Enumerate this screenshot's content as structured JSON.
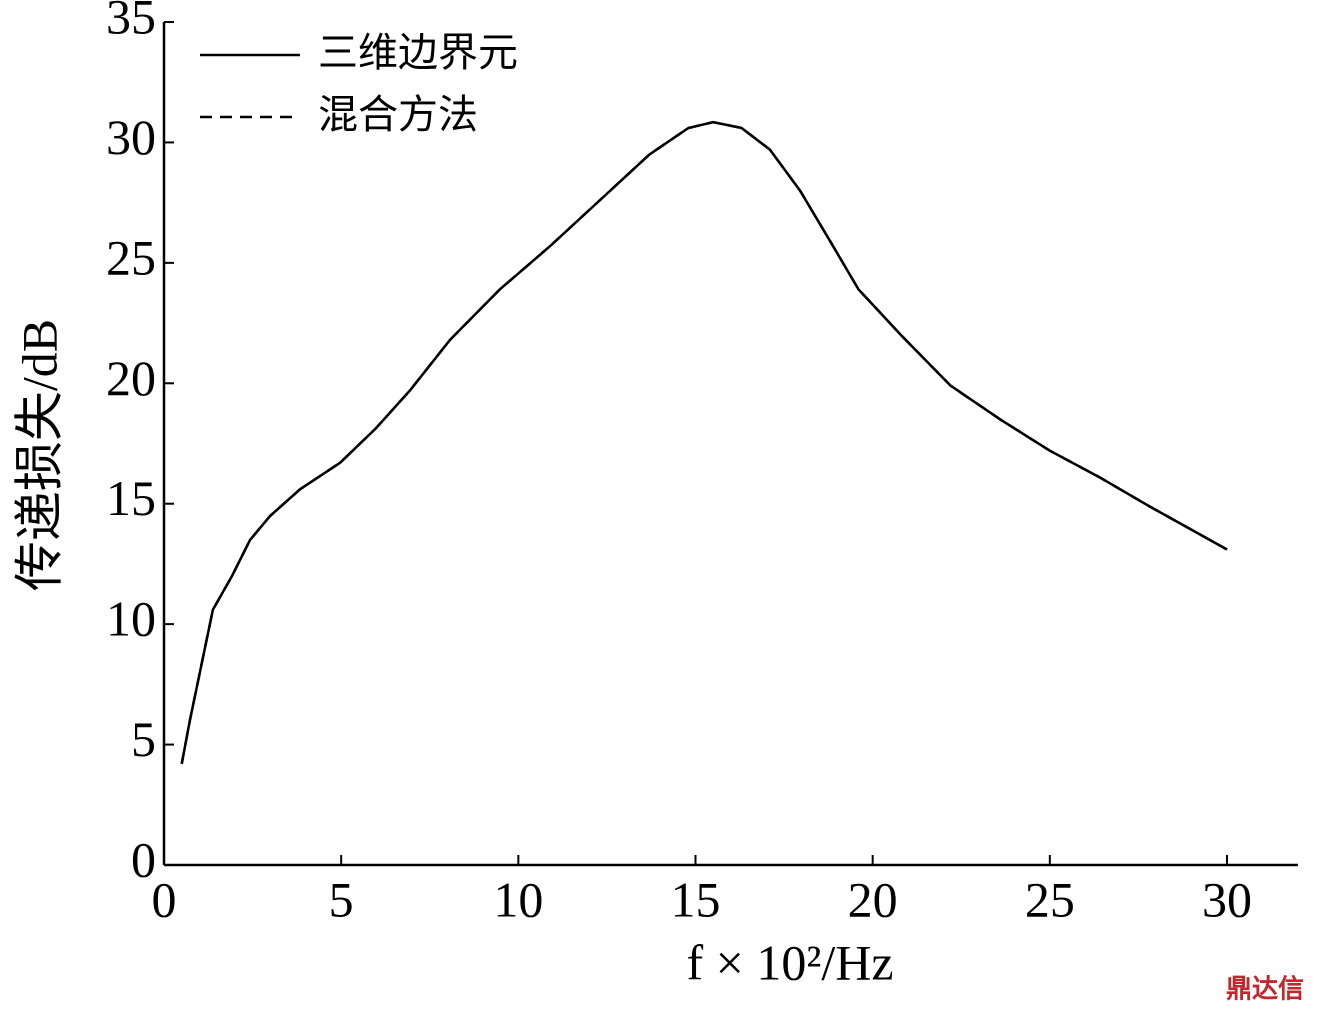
{
  "chart_data": {
    "type": "line",
    "xlabel": "f × 10²/Hz",
    "ylabel": "传递损失/dB",
    "watermark": "鼎达信",
    "xlim": [
      0,
      32
    ],
    "ylim": [
      0,
      35
    ],
    "xticks": [
      0,
      5,
      10,
      15,
      20,
      25,
      30
    ],
    "yticks": [
      0,
      5,
      10,
      15,
      20,
      25,
      30,
      35
    ],
    "legend": "upper left",
    "x": [
      0.5,
      0.73,
      1.38,
      1.92,
      2.43,
      3.0,
      3.84,
      4.97,
      5.96,
      6.94,
      8.07,
      9.48,
      10.9,
      12.3,
      13.7,
      14.8,
      15.5,
      16.3,
      17.1,
      17.95,
      18.8,
      19.6,
      20.8,
      22.2,
      23.6,
      25.0,
      26.4,
      27.8,
      30.0
    ],
    "series": [
      {
        "name": "三维边界元",
        "color": "#000000",
        "dash": "none",
        "values": [
          4.2,
          6.0,
          10.6,
          12.0,
          13.5,
          14.5,
          15.6,
          16.7,
          18.1,
          19.7,
          21.8,
          23.9,
          25.7,
          27.6,
          29.5,
          30.6,
          30.84,
          30.6,
          29.7,
          28.0,
          25.9,
          23.9,
          22.0,
          19.9,
          18.5,
          17.2,
          16.1,
          14.9,
          13.1
        ]
      },
      {
        "name": "混合方法",
        "color": "#000000",
        "dash": "12 8",
        "values": [
          4.2,
          6.0,
          10.6,
          12.0,
          13.5,
          14.5,
          15.6,
          16.7,
          18.1,
          19.7,
          21.8,
          23.9,
          25.7,
          27.6,
          29.5,
          30.6,
          30.84,
          30.6,
          29.7,
          28.0,
          25.9,
          23.9,
          22.0,
          19.9,
          18.5,
          17.2,
          16.1,
          14.9,
          13.1
        ]
      }
    ]
  }
}
